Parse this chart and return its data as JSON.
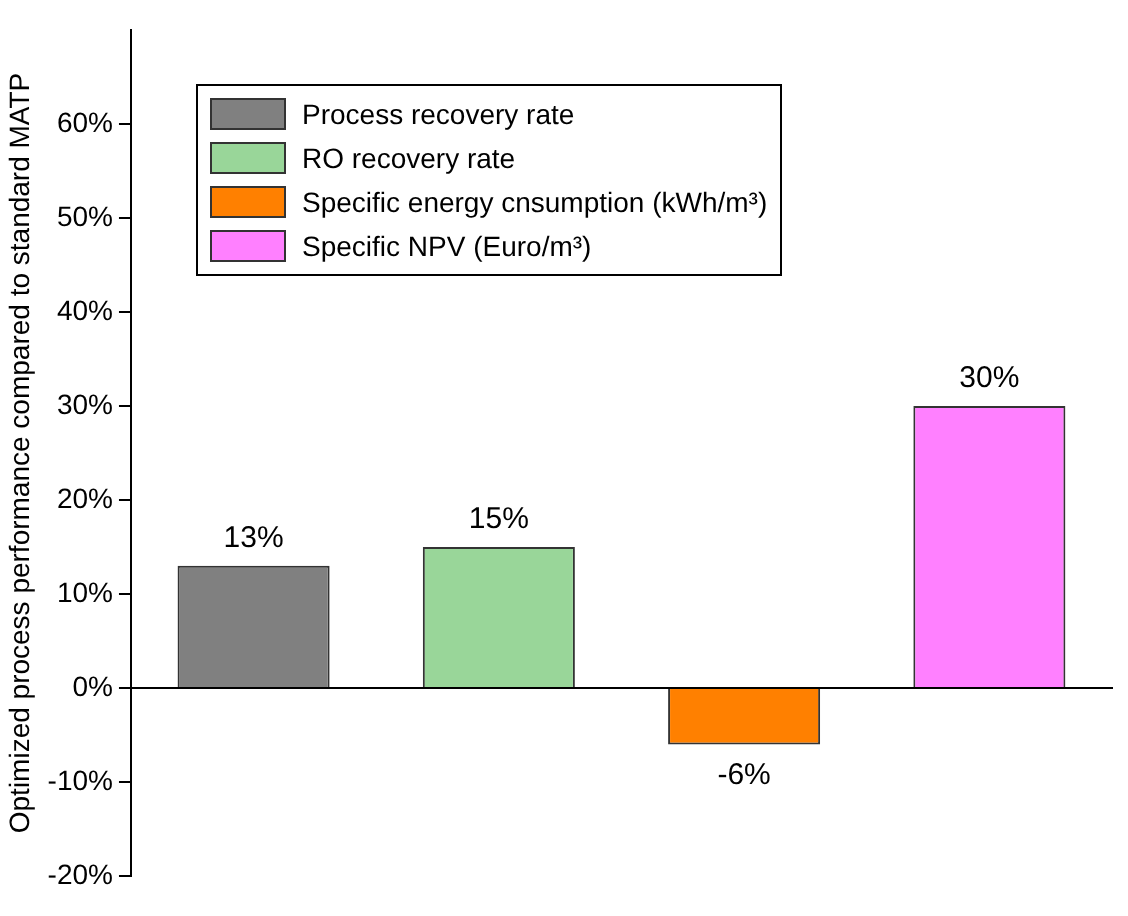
{
  "chart_data": {
    "type": "bar",
    "ylabel": "Optimized process performance compared to standard MATP",
    "categories": [
      null,
      null,
      null,
      null
    ],
    "series": [
      {
        "name": "Process recovery rate",
        "color": "#808080",
        "values": [
          13,
          null,
          null,
          null
        ],
        "value_labels": [
          "13%",
          null,
          null,
          null
        ]
      },
      {
        "name": "RO recovery rate",
        "color": "#99d699",
        "values": [
          null,
          15,
          null,
          null
        ],
        "value_labels": [
          null,
          "15%",
          null,
          null
        ]
      },
      {
        "name": "Specific energy cnsumption (kWh/m³)",
        "color": "#ff8000",
        "values": [
          null,
          null,
          -6,
          null
        ],
        "value_labels": [
          null,
          null,
          "-6%",
          null
        ]
      },
      {
        "name": "Specific NPV (Euro/m³)",
        "color": "#ff80ff",
        "values": [
          null,
          null,
          null,
          30
        ],
        "value_labels": [
          null,
          null,
          null,
          "30%"
        ]
      }
    ],
    "ylim": [
      -20,
      70
    ],
    "yticks": [
      {
        "value": -20,
        "label": "-20%"
      },
      {
        "value": -10,
        "label": "-10%"
      },
      {
        "value": 0,
        "label": "0%"
      },
      {
        "value": 10,
        "label": "10%"
      },
      {
        "value": 20,
        "label": "20%"
      },
      {
        "value": 30,
        "label": "30%"
      },
      {
        "value": 40,
        "label": "40%"
      },
      {
        "value": 50,
        "label": "50%"
      },
      {
        "value": 60,
        "label": "60%"
      }
    ],
    "tick_labels": "y",
    "legend": "top left"
  }
}
